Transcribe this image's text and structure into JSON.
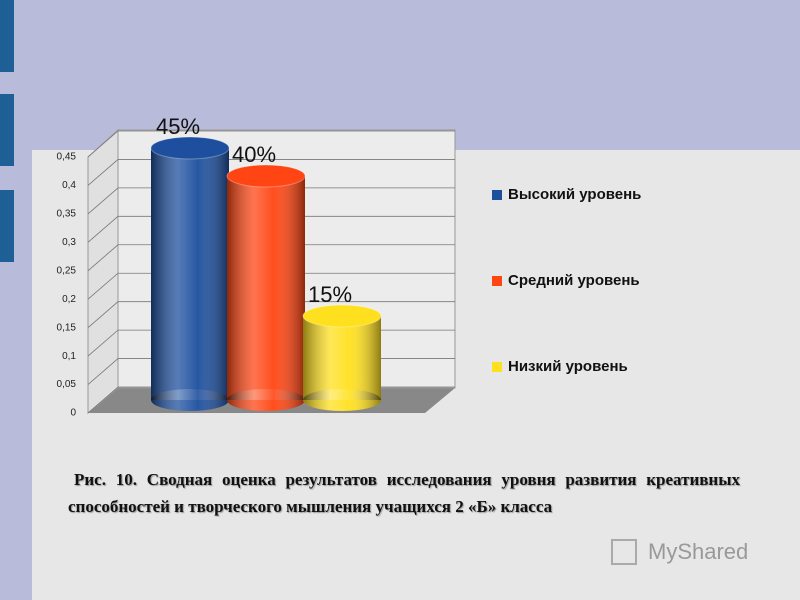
{
  "chart_data": {
    "type": "bar3d",
    "series": [
      {
        "name": "Высокий уровень",
        "color": "#1d4f9e",
        "values": [
          0.45
        ],
        "value_labels": [
          "45%"
        ]
      },
      {
        "name": "Средний уровень",
        "color": "#ff4513",
        "values": [
          0.4
        ],
        "value_labels": [
          "40%"
        ]
      },
      {
        "name": "Низкий уровень",
        "color": "#ffe01e",
        "values": [
          0.15
        ],
        "value_labels": [
          "15%"
        ]
      }
    ],
    "ylim": [
      0,
      0.45
    ],
    "yticks": [
      0,
      {
        "value": 0.05,
        "label": "0,05"
      },
      {
        "value": 0.1,
        "label": "0,1"
      },
      {
        "value": 0.15,
        "label": "0,15"
      },
      {
        "value": 0.2,
        "label": "0,2"
      },
      {
        "value": 0.25,
        "label": "0,25"
      },
      {
        "value": 0.3,
        "label": "0,3"
      },
      {
        "value": 0.35,
        "label": "0,35"
      },
      {
        "value": 0.4,
        "label": "0,4"
      },
      {
        "value": 0.45,
        "label": "0,45"
      }
    ],
    "grid": true,
    "legend": "right",
    "caption": "Рис. 10. Сводная оценка результатов исследования уровня развития креативных способностей и творческого мышления учащихся 2 «Б» класса",
    "watermark": "MyShared"
  }
}
